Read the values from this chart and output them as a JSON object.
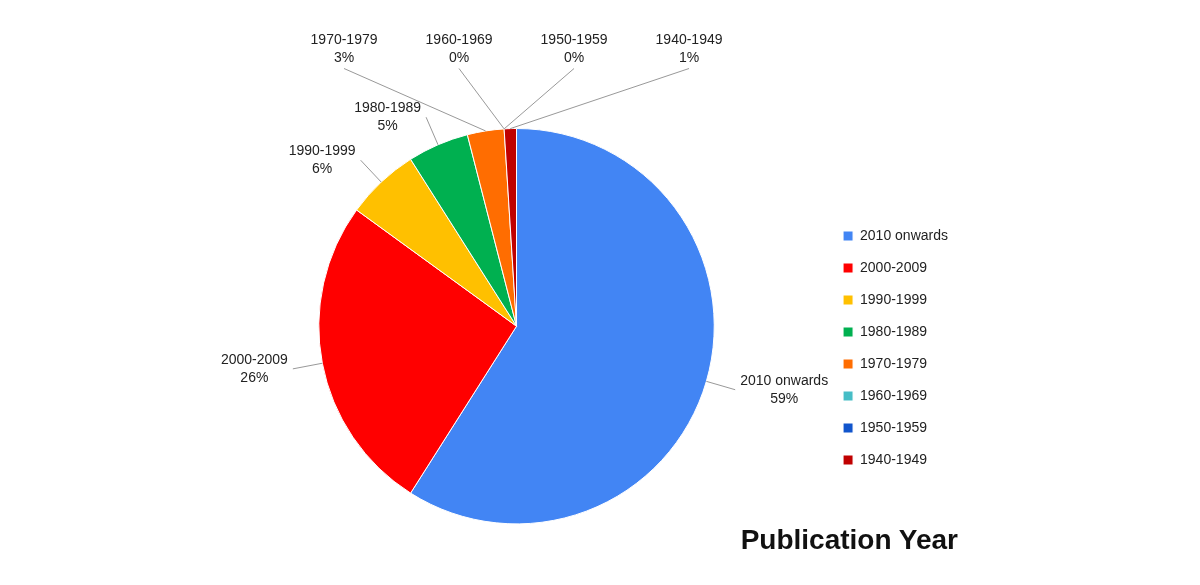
{
  "chart_data": {
    "type": "pie",
    "title": "Publication Year",
    "categories": [
      "2010 onwards",
      "2000-2009",
      "1990-1999",
      "1980-1989",
      "1970-1979",
      "1960-1969",
      "1950-1959",
      "1940-1949"
    ],
    "values": [
      59,
      26,
      6,
      5,
      3,
      0,
      0,
      1
    ],
    "colors": [
      "#4285f4",
      "#ff0000",
      "#ffc000",
      "#00b050",
      "#ff6d01",
      "#46bdc6",
      "#1155cc",
      "#c00000"
    ],
    "value_labels": [
      "59%",
      "26%",
      "6%",
      "5%",
      "3%",
      "0%",
      "0%",
      "1%"
    ],
    "legend": "right"
  }
}
